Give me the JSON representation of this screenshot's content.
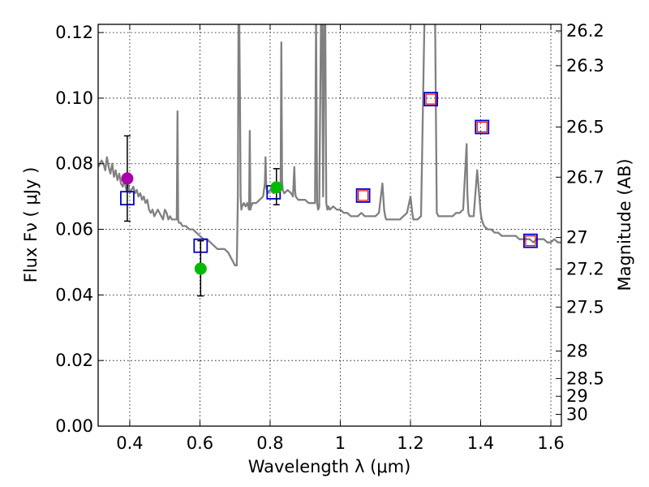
{
  "chart_data": {
    "type": "scatter",
    "title": "",
    "xlabel": "Wavelength  λ (μm)",
    "ylabel": "Flux  Fν  ( μJy )",
    "y2label": "Magnitude (AB)",
    "xlim": [
      0.31,
      1.63
    ],
    "ylim": [
      0.0,
      0.1225
    ],
    "xticks": [
      0.4,
      0.6,
      0.8,
      1.0,
      1.2,
      1.4,
      1.6
    ],
    "xtick_labels": [
      "0.4",
      "0.6",
      "0.8",
      "1",
      "1.2",
      "1.4",
      "1.6"
    ],
    "yticks": [
      0.0,
      0.02,
      0.04,
      0.06,
      0.08,
      0.1,
      0.12
    ],
    "ytick_labels": [
      "0.00",
      "0.02",
      "0.04",
      "0.06",
      "0.08",
      "0.10",
      "0.12"
    ],
    "y2ticks": [
      {
        "label": "26.2",
        "flux": 0.1205
      },
      {
        "label": "26.3",
        "flux": 0.1099
      },
      {
        "label": "26.5",
        "flux": 0.0912
      },
      {
        "label": "26.7",
        "flux": 0.0759
      },
      {
        "label": "27",
        "flux": 0.0575
      },
      {
        "label": "27.2",
        "flux": 0.0479
      },
      {
        "label": "27.5",
        "flux": 0.0363
      },
      {
        "label": "28",
        "flux": 0.0229
      },
      {
        "label": "28.5",
        "flux": 0.0145
      },
      {
        "label": "29",
        "flux": 0.0091
      },
      {
        "label": "30",
        "flux": 0.0036
      }
    ],
    "grid": true,
    "colors": {
      "spectrum": "#808080",
      "model_marker": "#0000cc",
      "inner_marker": "#ff0000",
      "detection_magenta": "#aa00aa",
      "detection_green": "#00bb00",
      "errorbar": "#000000"
    },
    "series": [
      {
        "name": "model spectrum",
        "kind": "line",
        "x": [
          0.31,
          0.315,
          0.32,
          0.325,
          0.33,
          0.335,
          0.34,
          0.345,
          0.35,
          0.355,
          0.36,
          0.365,
          0.37,
          0.375,
          0.38,
          0.385,
          0.39,
          0.395,
          0.4,
          0.405,
          0.41,
          0.415,
          0.42,
          0.425,
          0.43,
          0.435,
          0.44,
          0.445,
          0.45,
          0.455,
          0.46,
          0.465,
          0.47,
          0.475,
          0.48,
          0.485,
          0.49,
          0.495,
          0.5,
          0.505,
          0.51,
          0.515,
          0.52,
          0.525,
          0.53,
          0.534,
          0.536,
          0.538,
          0.54,
          0.545,
          0.55,
          0.56,
          0.57,
          0.58,
          0.59,
          0.6,
          0.61,
          0.62,
          0.63,
          0.64,
          0.65,
          0.66,
          0.67,
          0.68,
          0.69,
          0.7,
          0.705,
          0.708,
          0.71,
          0.712,
          0.714,
          0.716,
          0.718,
          0.72,
          0.725,
          0.73,
          0.735,
          0.74,
          0.742,
          0.744,
          0.746,
          0.75,
          0.76,
          0.77,
          0.78,
          0.785,
          0.787,
          0.789,
          0.791,
          0.793,
          0.8,
          0.81,
          0.82,
          0.83,
          0.832,
          0.834,
          0.836,
          0.84,
          0.85,
          0.86,
          0.865,
          0.867,
          0.869,
          0.871,
          0.873,
          0.88,
          0.89,
          0.9,
          0.91,
          0.92,
          0.928,
          0.931,
          0.934,
          0.937,
          0.94,
          0.945,
          0.948,
          0.951,
          0.954,
          0.957,
          0.96,
          0.963,
          0.966,
          0.97,
          0.98,
          0.99,
          1.0,
          1.01,
          1.02,
          1.03,
          1.04,
          1.05,
          1.06,
          1.07,
          1.08,
          1.09,
          1.1,
          1.11,
          1.12,
          1.125,
          1.128,
          1.131,
          1.134,
          1.14,
          1.15,
          1.16,
          1.17,
          1.18,
          1.19,
          1.2,
          1.205,
          1.208,
          1.211,
          1.214,
          1.22,
          1.23,
          1.24,
          1.245,
          1.25,
          1.255,
          1.26,
          1.265,
          1.27,
          1.275,
          1.28,
          1.285,
          1.29,
          1.3,
          1.31,
          1.32,
          1.33,
          1.34,
          1.35,
          1.36,
          1.362,
          1.365,
          1.368,
          1.371,
          1.38,
          1.39,
          1.4,
          1.403,
          1.406,
          1.41,
          1.42,
          1.43,
          1.44,
          1.45,
          1.46,
          1.47,
          1.48,
          1.49,
          1.5,
          1.51,
          1.52,
          1.53,
          1.54,
          1.55,
          1.56,
          1.57,
          1.58,
          1.59,
          1.6,
          1.61,
          1.62,
          1.63
        ],
        "y": [
          0.079,
          0.08,
          0.081,
          0.08,
          0.078,
          0.082,
          0.079,
          0.077,
          0.08,
          0.076,
          0.078,
          0.075,
          0.077,
          0.074,
          0.073,
          0.075,
          0.072,
          0.074,
          0.071,
          0.072,
          0.073,
          0.071,
          0.072,
          0.07,
          0.071,
          0.069,
          0.07,
          0.068,
          0.069,
          0.066,
          0.065,
          0.066,
          0.064,
          0.065,
          0.066,
          0.065,
          0.064,
          0.063,
          0.066,
          0.065,
          0.063,
          0.064,
          0.063,
          0.063,
          0.063,
          0.063,
          0.096,
          0.063,
          0.062,
          0.062,
          0.061,
          0.061,
          0.06,
          0.06,
          0.059,
          0.058,
          0.057,
          0.057,
          0.056,
          0.055,
          0.054,
          0.054,
          0.054,
          0.053,
          0.051,
          0.049,
          0.049,
          0.07,
          0.125,
          0.125,
          0.1,
          0.07,
          0.066,
          0.067,
          0.068,
          0.067,
          0.068,
          0.066,
          0.09,
          0.066,
          0.067,
          0.068,
          0.068,
          0.069,
          0.07,
          0.074,
          0.082,
          0.073,
          0.072,
          0.071,
          0.072,
          0.071,
          0.072,
          0.073,
          0.117,
          0.075,
          0.072,
          0.071,
          0.072,
          0.071,
          0.07,
          0.074,
          0.079,
          0.072,
          0.07,
          0.069,
          0.069,
          0.069,
          0.068,
          0.068,
          0.068,
          0.125,
          0.068,
          0.066,
          0.067,
          0.125,
          0.125,
          0.07,
          0.125,
          0.125,
          0.068,
          0.066,
          0.067,
          0.066,
          0.067,
          0.066,
          0.066,
          0.065,
          0.065,
          0.064,
          0.064,
          0.064,
          0.065,
          0.064,
          0.064,
          0.064,
          0.064,
          0.065,
          0.074,
          0.066,
          0.064,
          0.063,
          0.063,
          0.063,
          0.063,
          0.063,
          0.063,
          0.064,
          0.065,
          0.07,
          0.065,
          0.063,
          0.063,
          0.063,
          0.063,
          0.064,
          0.125,
          0.125,
          0.125,
          0.125,
          0.125,
          0.125,
          0.125,
          0.065,
          0.064,
          0.064,
          0.064,
          0.064,
          0.064,
          0.064,
          0.065,
          0.065,
          0.066,
          0.086,
          0.071,
          0.065,
          0.064,
          0.064,
          0.064,
          0.078,
          0.065,
          0.063,
          0.062,
          0.061,
          0.06,
          0.06,
          0.059,
          0.059,
          0.058,
          0.058,
          0.058,
          0.058,
          0.058,
          0.057,
          0.057,
          0.057,
          0.057,
          0.056,
          0.057,
          0.057,
          0.057,
          0.056,
          0.056,
          0.057,
          0.056,
          0.056
        ]
      },
      {
        "name": "model photometry",
        "kind": "open-squares",
        "x": [
          0.393,
          0.602,
          0.81,
          1.065,
          1.258,
          1.404,
          1.542
        ],
        "y": [
          0.0695,
          0.055,
          0.0713,
          0.0703,
          0.0997,
          0.0912,
          0.0565
        ]
      },
      {
        "name": "model photometry (red)",
        "kind": "inner-squares",
        "x": [
          1.065,
          1.258,
          1.404,
          1.542
        ],
        "y": [
          0.0703,
          0.0997,
          0.0912,
          0.0565
        ]
      },
      {
        "name": "observed (magenta)",
        "kind": "points-errorbars",
        "x": [
          0.393
        ],
        "y": [
          0.0755
        ],
        "yerr_low": [
          0.0625
        ],
        "yerr_high": [
          0.0885
        ]
      },
      {
        "name": "observed (green)",
        "kind": "points-errorbars",
        "x": [
          0.602,
          0.818
        ],
        "y": [
          0.048,
          0.0728
        ],
        "yerr_low": [
          0.0397,
          0.0675
        ],
        "yerr_high": [
          0.0565,
          0.0785
        ]
      }
    ]
  }
}
